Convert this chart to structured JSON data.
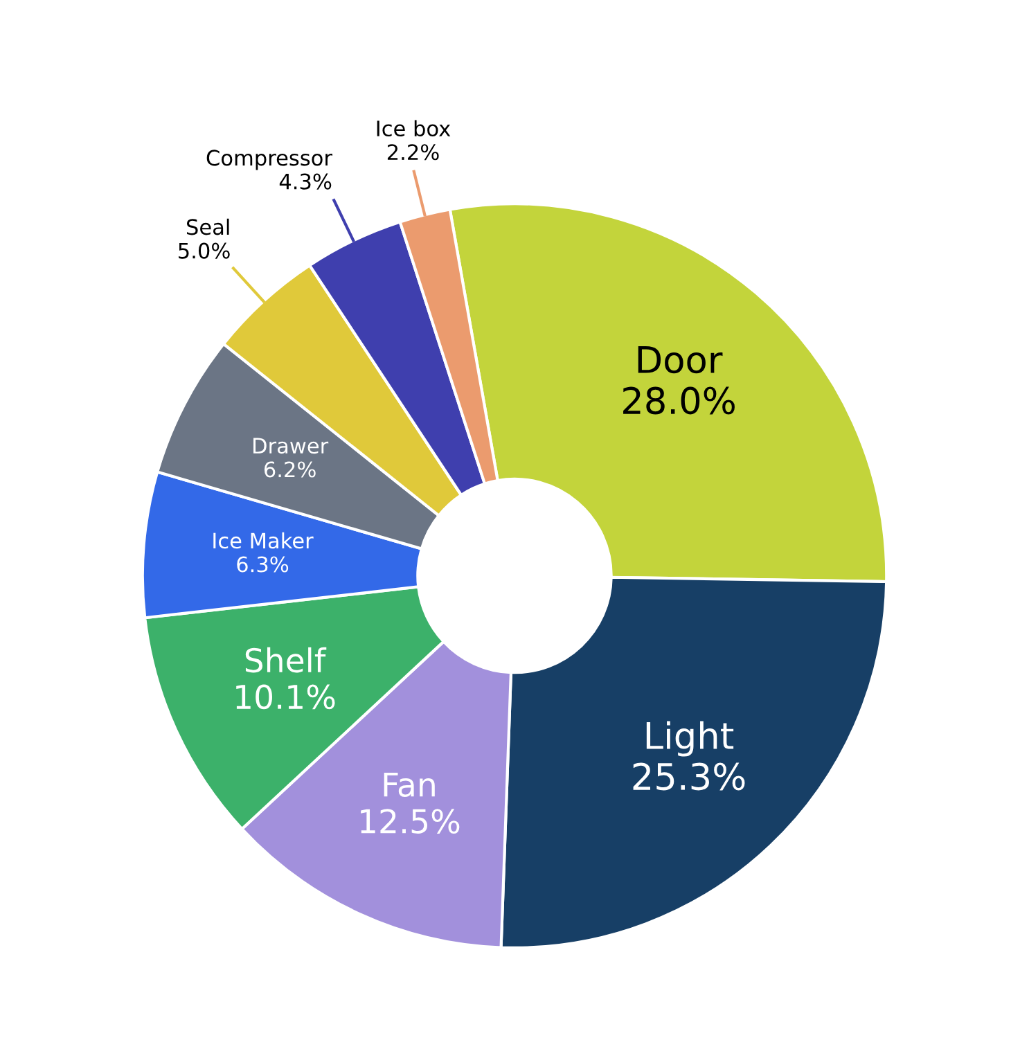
{
  "chart_data": {
    "type": "donut",
    "categories": [
      "Door",
      "Light",
      "Fan",
      "Shelf",
      "Ice Maker",
      "Drawer",
      "Seal",
      "Compressor",
      "Ice box"
    ],
    "values": [
      28.0,
      25.3,
      12.5,
      10.1,
      6.3,
      6.2,
      5.0,
      4.3,
      2.2
    ],
    "value_labels": [
      "28.0%",
      "25.3%",
      "12.5%",
      "10.1%",
      "6.3%",
      "6.2%",
      "5.0%",
      "4.3%",
      "2.2%"
    ],
    "colors": [
      "#c3d43b",
      "#173f66",
      "#a290dc",
      "#3cb16a",
      "#3369e8",
      "#6b7585",
      "#e0c93a",
      "#3f3fae",
      "#eb9b6e"
    ],
    "legend": false
  }
}
